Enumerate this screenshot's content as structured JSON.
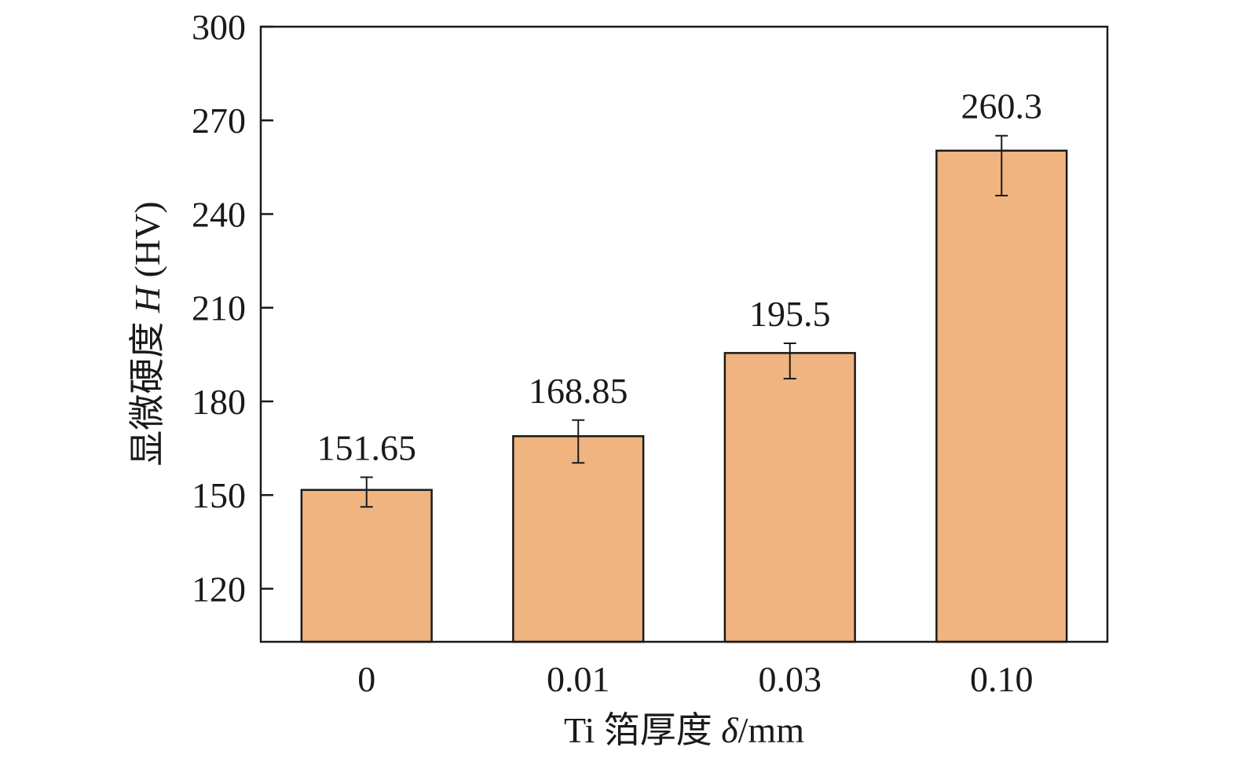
{
  "chart_data": {
    "type": "bar",
    "categories": [
      "0",
      "0.01",
      "0.03",
      "0.10"
    ],
    "values": [
      151.65,
      168.85,
      195.5,
      260.3
    ],
    "data_labels": [
      "151.65",
      "168.85",
      "195.5",
      "260.3"
    ],
    "error_bars": [
      {
        "low": 146.2,
        "high": 155.7
      },
      {
        "low": 160.3,
        "high": 174.0
      },
      {
        "low": 187.3,
        "high": 198.6
      },
      {
        "low": 245.9,
        "high": 265.1
      }
    ],
    "bar_color": "#EFB47F",
    "ylim": [
      103,
      300
    ],
    "yticks": [
      120,
      150,
      180,
      210,
      240,
      270,
      300
    ],
    "ytick_labels": [
      "120",
      "150",
      "180",
      "210",
      "240",
      "270",
      "300"
    ],
    "xlabel": {
      "prefix": "Ti 箔厚度 ",
      "symbol": "δ",
      "suffix": "/mm"
    },
    "ylabel": {
      "prefix": "显微硬度 ",
      "symbol": "H",
      "suffix": " (HV)"
    },
    "grid": false,
    "legend": "none"
  }
}
